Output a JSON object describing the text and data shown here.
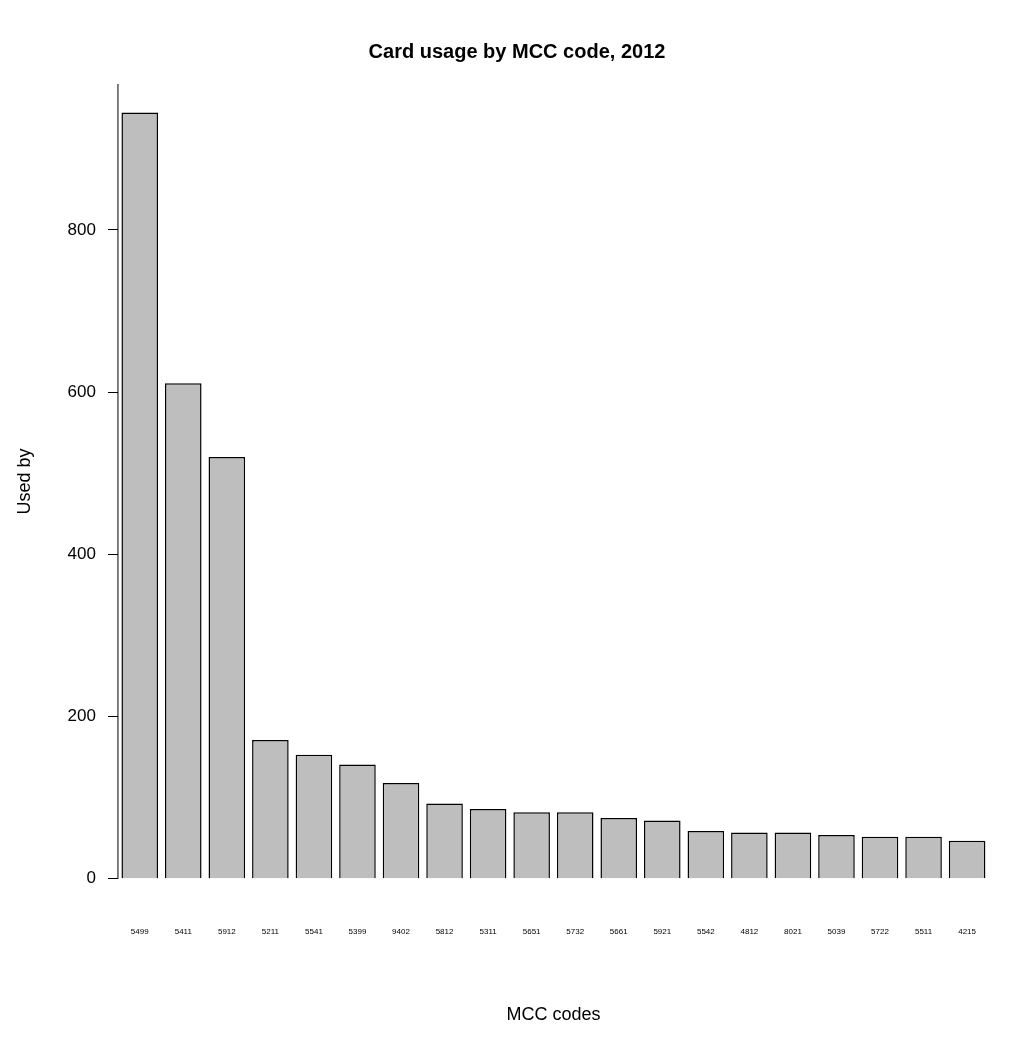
{
  "chart_data": {
    "type": "bar",
    "title": "Card usage by MCC code, 2012",
    "xlabel": "MCC codes",
    "ylabel": "Used by",
    "categories": [
      "5499",
      "5411",
      "5912",
      "5211",
      "5541",
      "5399",
      "9402",
      "5812",
      "5311",
      "5651",
      "5732",
      "5661",
      "5921",
      "5542",
      "4812",
      "8021",
      "5039",
      "5722",
      "5511",
      "4215"
    ],
    "values": [
      945,
      611,
      520,
      171,
      153,
      141,
      118,
      93,
      86,
      82,
      82,
      75,
      72,
      59,
      57,
      57,
      54,
      52,
      52,
      47
    ],
    "color": "#bebebe",
    "ylim": [
      0,
      980
    ],
    "yticks": [
      0,
      200,
      400,
      600,
      800
    ],
    "grid": false
  }
}
